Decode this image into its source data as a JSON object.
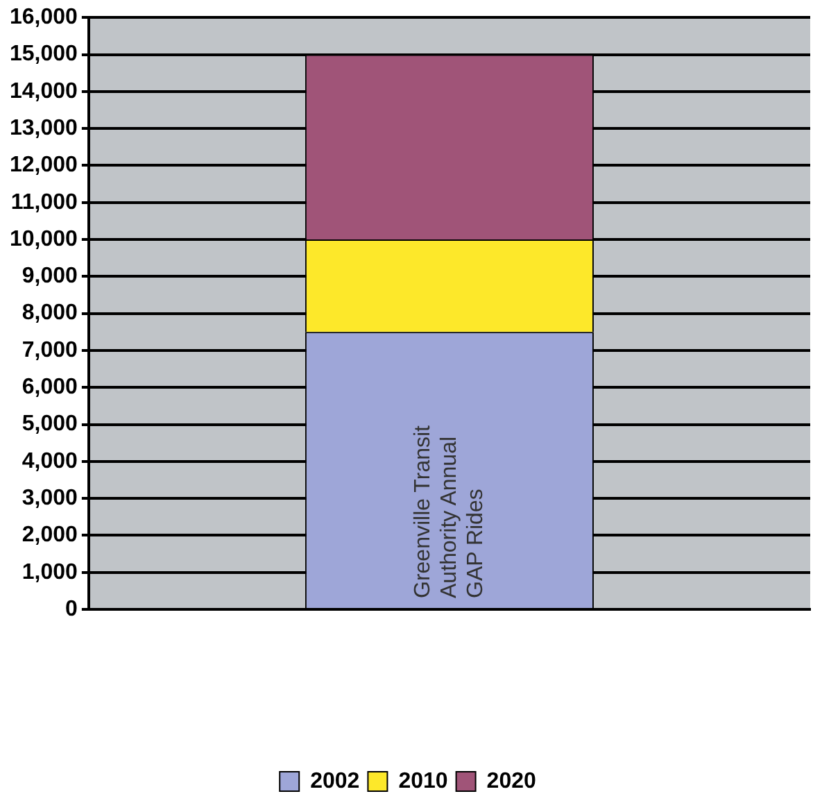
{
  "chart_data": {
    "type": "bar",
    "stacked": true,
    "categories": [
      "Greenville Transit Authority Annual GAP Rides"
    ],
    "series": [
      {
        "name": "2002",
        "color": "#9ea6d8",
        "values": [
          7500
        ]
      },
      {
        "name": "2010",
        "color": "#fde82a",
        "values": [
          2500
        ]
      },
      {
        "name": "2020",
        "color": "#a05478",
        "values": [
          5000
        ]
      }
    ],
    "ylim": [
      0,
      16000
    ],
    "yticks": [
      0,
      {
        "value": 1000,
        "label": "1,000"
      },
      {
        "value": 2000,
        "label": "2,000"
      },
      {
        "value": 3000,
        "label": "3,000"
      },
      {
        "value": 4000,
        "label": "4,000"
      },
      {
        "value": 5000,
        "label": "5,000"
      },
      {
        "value": 6000,
        "label": "6,000"
      },
      {
        "value": 7000,
        "label": "7,000"
      },
      {
        "value": 8000,
        "label": "8,000"
      },
      {
        "value": 9000,
        "label": "9,000"
      },
      {
        "value": 10000,
        "label": "10,000"
      },
      {
        "value": 11000,
        "label": "11,000"
      },
      {
        "value": 12000,
        "label": "12,000"
      },
      {
        "value": 13000,
        "label": "13,000"
      },
      {
        "value": 14000,
        "label": "14,000"
      },
      {
        "value": 15000,
        "label": "15,000"
      },
      {
        "value": 16000,
        "label": "16,000"
      }
    ],
    "grid": "y",
    "legend": "bottom"
  }
}
